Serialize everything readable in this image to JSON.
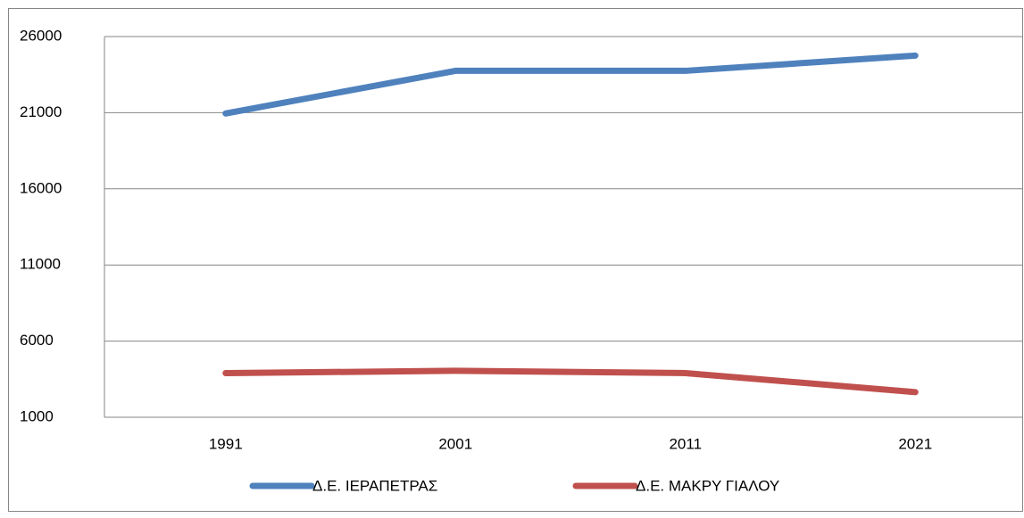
{
  "chart_data": {
    "type": "line",
    "categories": [
      "1991",
      "2001",
      "2011",
      "2021"
    ],
    "series": [
      {
        "name": "Δ.Ε. ΙΕΡΑΠΕΤΡΑΣ",
        "color": "#4f81bd",
        "values": [
          20950,
          23750,
          23750,
          24750
        ]
      },
      {
        "name": "Δ.Ε. ΜΑΚΡΥ ΓΙΑΛΟΥ",
        "color": "#c0504d",
        "values": [
          3900,
          4050,
          3900,
          2650
        ]
      }
    ],
    "ylim": [
      1000,
      26000
    ],
    "yticks": [
      1000,
      6000,
      11000,
      16000,
      21000,
      26000
    ],
    "grid": true,
    "legend": "bottom"
  }
}
